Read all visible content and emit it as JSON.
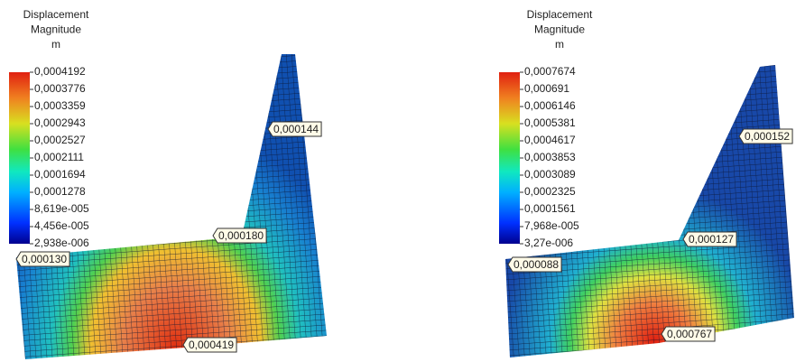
{
  "panels": [
    {
      "legend": {
        "title": [
          "Displacement",
          "Magnitude",
          "m"
        ],
        "labels": [
          "0,0004192",
          "0,0003776",
          "0,0003359",
          "0,0002943",
          "0,0002527",
          "0,0002111",
          "0,0001694",
          "0,0001278",
          "8,619e-005",
          "4,456e-005",
          "2,938e-006"
        ]
      },
      "probes": [
        "0,000144",
        "0,000180",
        "0,000130",
        "0,000419"
      ]
    },
    {
      "legend": {
        "title": [
          "Displacement",
          "Magnitude",
          "m"
        ],
        "labels": [
          "0,0007674",
          "0,000691",
          "0,0006146",
          "0,0005381",
          "0,0004617",
          "0,0003853",
          "0,0003089",
          "0,0002325",
          "0,0001561",
          "7,968e-005",
          "3,27e-006"
        ]
      },
      "probes": [
        "0,000152",
        "0,000127",
        "0,000088",
        "0,000767"
      ]
    }
  ]
}
